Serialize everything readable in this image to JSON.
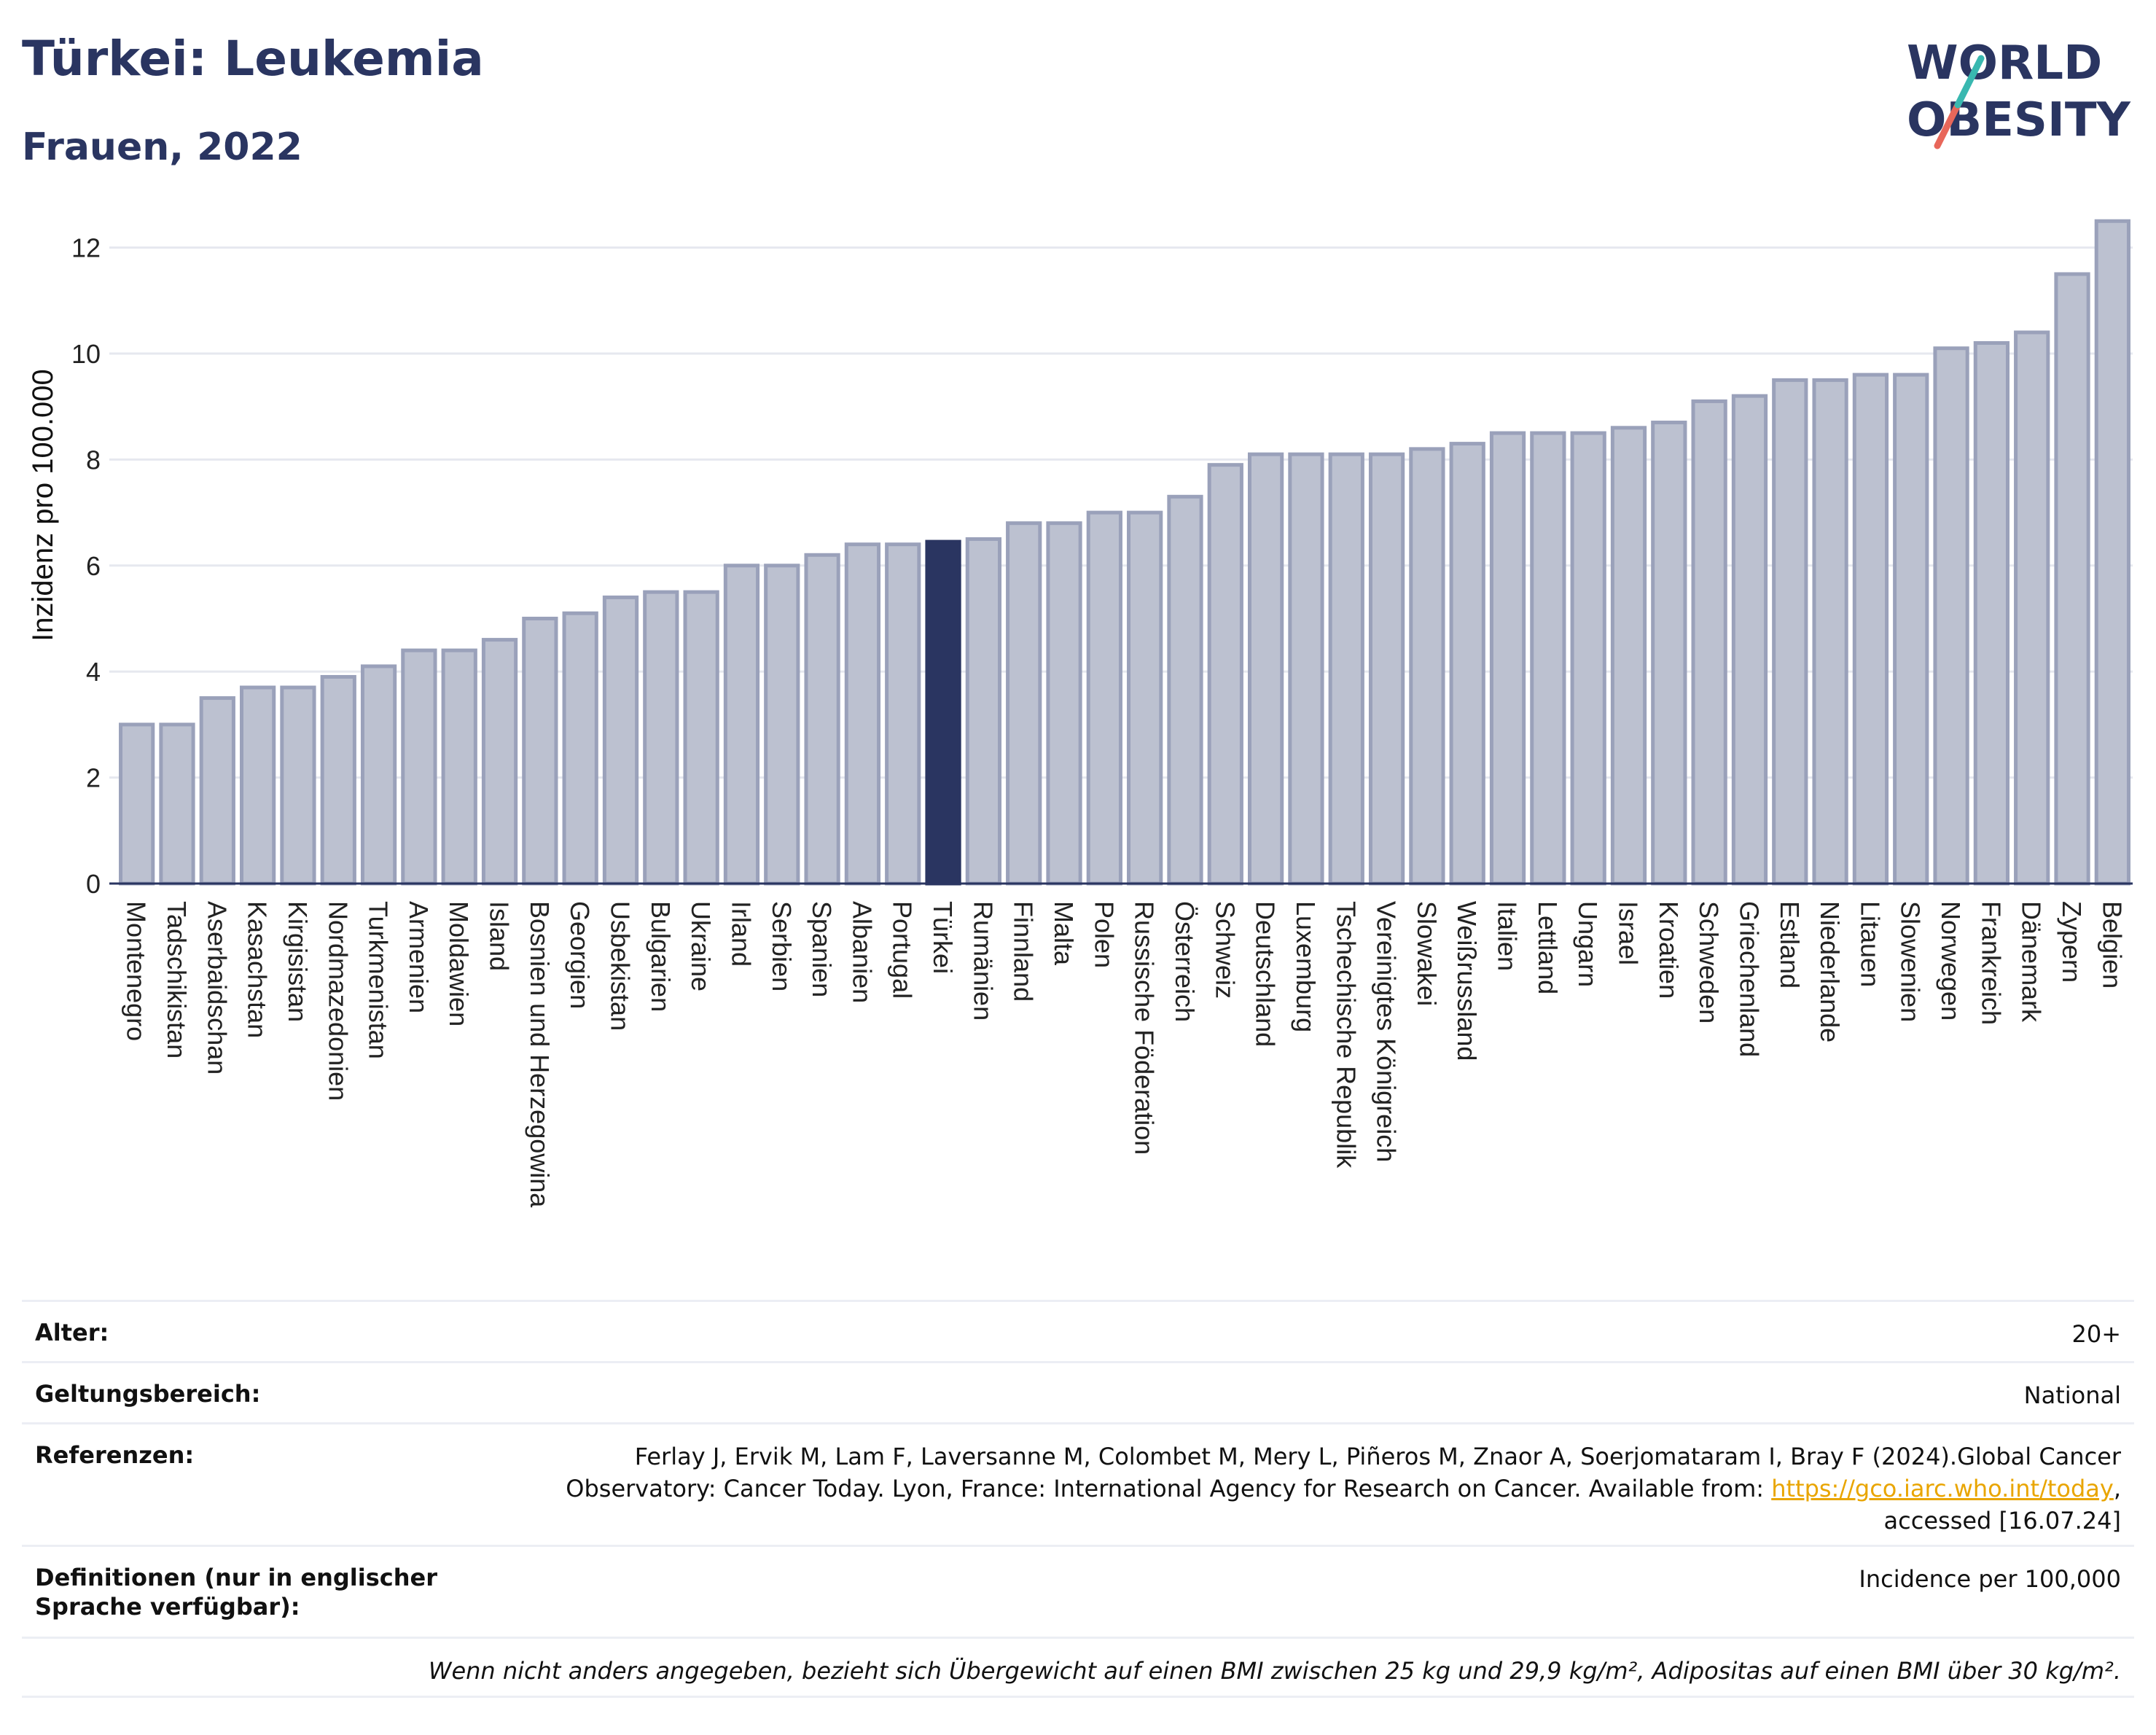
{
  "header": {
    "title": "Türkei: Leukemia",
    "subtitle": "Frauen, 2022"
  },
  "logo": {
    "line1": "WORLD",
    "line2": "OBESITY"
  },
  "colors": {
    "bar": "#bcc1d0",
    "bar_border": "#9aa1ba",
    "highlight": "#2a3561",
    "grid": "#e6e8ef",
    "text": "#222222"
  },
  "chart_data": {
    "type": "bar",
    "ylabel": "Inzidenz pro 100.000",
    "ylim": [
      0,
      12.6
    ],
    "yticks": [
      0,
      2,
      4,
      6,
      8,
      10,
      12
    ],
    "grid": true,
    "highlight": "Türkei",
    "categories": [
      "Montenegro",
      "Tadschikistan",
      "Aserbaidschan",
      "Kasachstan",
      "Kirgisistan",
      "Nordmazedonien",
      "Turkmenistan",
      "Armenien",
      "Moldawien",
      "Island",
      "Bosnien und Herzegowina",
      "Georgien",
      "Usbekistan",
      "Bulgarien",
      "Ukraine",
      "Irland",
      "Serbien",
      "Spanien",
      "Albanien",
      "Portugal",
      "Türkei",
      "Rumänien",
      "Finnland",
      "Malta",
      "Polen",
      "Russische Föderation",
      "Österreich",
      "Schweiz",
      "Deutschland",
      "Luxemburg",
      "Tschechische Republik",
      "Vereinigtes Königreich",
      "Slowakei",
      "Weißrussland",
      "Italien",
      "Lettland",
      "Ungarn",
      "Israel",
      "Kroatien",
      "Schweden",
      "Griechenland",
      "Estland",
      "Niederlande",
      "Litauen",
      "Slowenien",
      "Norwegen",
      "Frankreich",
      "Dänemark",
      "Zypern",
      "Belgien"
    ],
    "values": [
      3.0,
      3.0,
      3.5,
      3.7,
      3.7,
      3.9,
      4.1,
      4.4,
      4.4,
      4.6,
      5.0,
      5.1,
      5.4,
      5.5,
      5.5,
      6.0,
      6.0,
      6.2,
      6.4,
      6.4,
      6.45,
      6.5,
      6.8,
      6.8,
      7.0,
      7.0,
      7.3,
      7.9,
      8.1,
      8.1,
      8.1,
      8.1,
      8.2,
      8.3,
      8.5,
      8.5,
      8.5,
      8.6,
      8.7,
      9.1,
      9.2,
      9.5,
      9.5,
      9.6,
      9.6,
      10.1,
      10.2,
      10.4,
      11.5,
      12.5
    ]
  },
  "meta": {
    "age_label": "Alter:",
    "age_value": "20+",
    "scope_label": "Geltungsbereich:",
    "scope_value": "National",
    "refs_label": "Referenzen:",
    "refs_line1": "Ferlay J, Ervik M, Lam F, Laversanne M, Colombet M, Mery L, Piñeros M, Znaor A, Soerjomataram I, Bray F (2024).Global Cancer",
    "refs_line2": "Observatory: Cancer Today. Lyon, France: International Agency for Research on Cancer. Available from: ",
    "refs_link": "https://gco.iarc.who.int/today",
    "refs_line2_end": ",",
    "refs_line3": "accessed [16.07.24]",
    "defs_label": "Definitionen (nur in englischer Sprache verfügbar):",
    "defs_value": "Incidence per 100,000",
    "note": "Wenn nicht anders angegeben, bezieht sich Übergewicht auf einen BMI zwischen 25 kg und 29,9 kg/m², Adipositas auf einen BMI über 30 kg/m²."
  }
}
